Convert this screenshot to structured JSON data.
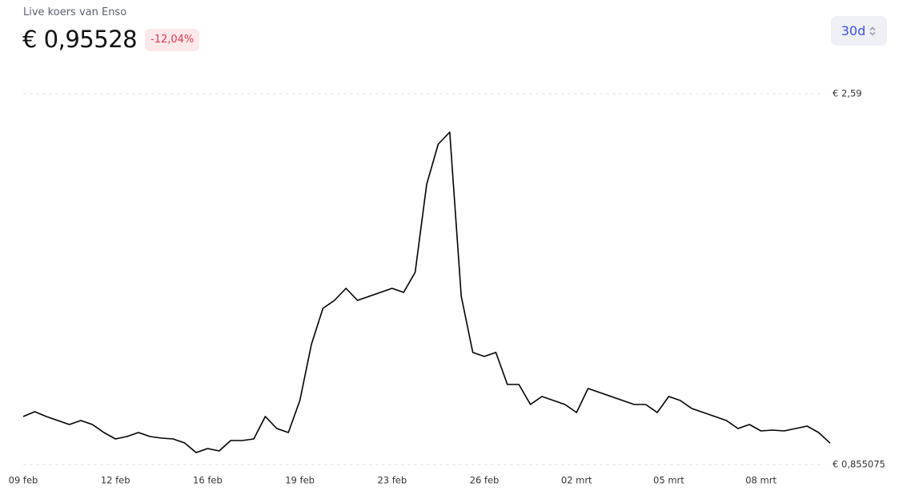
{
  "header": {
    "subtitle": "Live koers van Enso",
    "price": "€ 0,95528",
    "change": "-12,04%",
    "range_button": "30d"
  },
  "chart_data": {
    "type": "line",
    "categories": [
      "09 feb",
      null,
      null,
      null,
      null,
      null,
      null,
      null,
      "12 feb",
      null,
      null,
      null,
      null,
      null,
      null,
      null,
      "16 feb",
      null,
      null,
      null,
      null,
      null,
      null,
      null,
      "19 feb",
      null,
      null,
      null,
      null,
      null,
      null,
      null,
      "23 feb",
      null,
      null,
      null,
      null,
      null,
      null,
      null,
      "26 feb",
      null,
      null,
      null,
      null,
      null,
      null,
      null,
      "02 mrt",
      null,
      null,
      null,
      null,
      null,
      null,
      null,
      "05 mrt",
      null,
      null,
      null,
      null,
      null,
      null,
      null,
      "08 mrt",
      null,
      null,
      null,
      null,
      null,
      null
    ],
    "series": [
      {
        "name": "Enso",
        "color": "#000000",
        "values": [
          1.0799,
          1.1024,
          1.0799,
          1.0612,
          1.0424,
          1.0612,
          1.0424,
          1.005,
          0.975,
          0.9862,
          1.005,
          0.9862,
          0.9787,
          0.975,
          0.9562,
          0.9113,
          0.93,
          0.9188,
          0.9675,
          0.9675,
          0.975,
          1.0799,
          1.0237,
          1.005,
          1.1548,
          1.4171,
          1.5858,
          1.6232,
          1.6794,
          1.6232,
          1.642,
          1.6607,
          1.6794,
          1.6607,
          1.7544,
          2.1665,
          2.3539,
          2.4101,
          1.642,
          1.3797,
          1.3609,
          1.3797,
          1.2298,
          1.2298,
          1.1361,
          1.1736,
          1.1548,
          1.1361,
          1.0987,
          1.211,
          1.1923,
          1.1736,
          1.1548,
          1.1361,
          1.1361,
          1.0987,
          1.1736,
          1.1548,
          1.1174,
          1.0987,
          1.0799,
          1.0612,
          1.0237,
          1.0424,
          1.0124,
          1.0162,
          1.0124,
          1.0237,
          1.0349,
          1.005,
          0.9553
        ]
      }
    ],
    "ylim": [
      0.855075,
      2.59
    ],
    "yticks": [
      {
        "value": 2.59,
        "label": "€ 2,59"
      },
      {
        "value": 0.855075,
        "label": "€ 0,855075"
      }
    ],
    "grid": true
  }
}
